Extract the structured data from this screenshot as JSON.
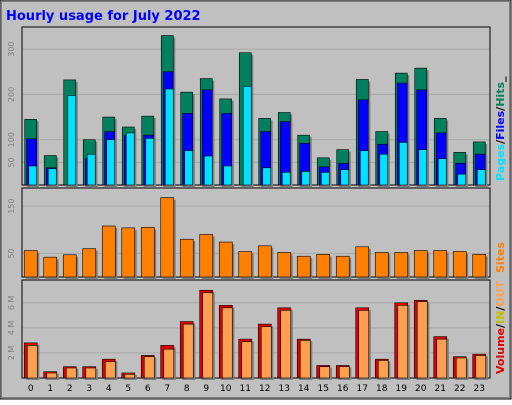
{
  "title": "Hourly usage for July 2022",
  "colors": {
    "background": "#c0c0c0",
    "border": "#000000",
    "title": "#0000ff",
    "hits": "#00805c",
    "files": "#0000ff",
    "pages": "#00e0ff",
    "sites": "#ff8000",
    "volume": "#e00000",
    "kb_out": "#ffa050",
    "label_in": "#c0c000",
    "label_sep": "#000000"
  },
  "chart_data": [
    {
      "type": "bar",
      "panel": "top",
      "categories": [
        "0",
        "1",
        "2",
        "3",
        "4",
        "5",
        "6",
        "7",
        "8",
        "9",
        "10",
        "11",
        "12",
        "13",
        "14",
        "15",
        "16",
        "17",
        "18",
        "19",
        "20",
        "21",
        "22",
        "23"
      ],
      "series": [
        {
          "name": "Hits",
          "values": [
            145,
            65,
            232,
            100,
            150,
            128,
            152,
            330,
            205,
            235,
            190,
            292,
            147,
            160,
            110,
            60,
            78,
            233,
            118,
            247,
            258,
            147,
            72,
            95
          ]
        },
        {
          "name": "Files",
          "values": [
            102,
            38,
            0,
            58,
            118,
            110,
            110,
            250,
            158,
            210,
            158,
            0,
            118,
            140,
            92,
            40,
            48,
            188,
            90,
            225,
            210,
            115,
            48,
            68
          ]
        },
        {
          "name": "Pages",
          "values": [
            42,
            36,
            198,
            68,
            100,
            115,
            103,
            212,
            76,
            64,
            42,
            218,
            38,
            28,
            30,
            28,
            34,
            76,
            68,
            94,
            78,
            58,
            24,
            34
          ]
        }
      ],
      "ylim": [
        0,
        340
      ],
      "yticks": [
        50,
        100,
        200,
        300
      ],
      "legend_parts": [
        "Pages",
        "Files",
        "Hits"
      ],
      "legend_seps": [
        "/",
        "/",
        "_"
      ]
    },
    {
      "type": "bar",
      "panel": "middle",
      "categories": [
        "0",
        "1",
        "2",
        "3",
        "4",
        "5",
        "6",
        "7",
        "8",
        "9",
        "10",
        "11",
        "12",
        "13",
        "14",
        "15",
        "16",
        "17",
        "18",
        "19",
        "20",
        "21",
        "22",
        "23"
      ],
      "series": [
        {
          "name": "Sites",
          "values": [
            56,
            42,
            47,
            60,
            108,
            104,
            105,
            168,
            80,
            90,
            74,
            54,
            66,
            52,
            44,
            48,
            44,
            64,
            52,
            52,
            56,
            56,
            54,
            48
          ]
        }
      ],
      "ylim": [
        0,
        180
      ],
      "yticks": [
        50,
        150
      ],
      "legend_parts": [
        "Sites"
      ],
      "legend_seps": []
    },
    {
      "type": "bar",
      "panel": "bottom",
      "categories": [
        "0",
        "1",
        "2",
        "3",
        "4",
        "5",
        "6",
        "7",
        "8",
        "9",
        "10",
        "11",
        "12",
        "13",
        "14",
        "15",
        "16",
        "17",
        "18",
        "19",
        "20",
        "21",
        "22",
        "23"
      ],
      "series": [
        {
          "name": "Volume",
          "values": [
            2.8,
            0.5,
            0.9,
            0.9,
            1.5,
            0.4,
            1.8,
            2.6,
            4.5,
            7.0,
            5.8,
            3.1,
            4.3,
            5.6,
            3.1,
            1.0,
            1.0,
            5.6,
            1.5,
            6.0,
            6.2,
            3.3,
            1.7,
            1.9
          ]
        },
        {
          "name": "KB Out",
          "values": [
            2.6,
            0.4,
            0.8,
            0.8,
            1.3,
            0.3,
            1.7,
            2.3,
            4.3,
            6.8,
            5.6,
            2.9,
            4.1,
            5.4,
            3.0,
            0.9,
            0.9,
            5.4,
            1.4,
            5.8,
            6.1,
            3.1,
            1.6,
            1.8
          ]
        }
      ],
      "ylim": [
        0,
        7.5
      ],
      "yticks": [
        2,
        4,
        6
      ],
      "ytick_labels": [
        "2 M",
        "4 M",
        "6 M"
      ],
      "legend_parts": [
        "Volume",
        "IN",
        "OUT"
      ],
      "legend_seps": [
        "/",
        "/"
      ]
    }
  ]
}
